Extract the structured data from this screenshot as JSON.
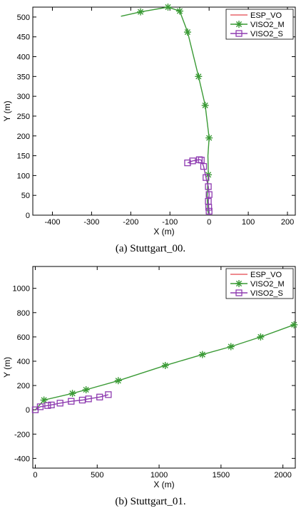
{
  "chart_data": [
    {
      "type": "line",
      "caption": "(a)  Stuttgart_00.",
      "xlabel": "X (m)",
      "ylabel": "Y (m)",
      "xlim": [
        -450,
        220
      ],
      "ylim": [
        0,
        525
      ],
      "xticks": [
        -400,
        -300,
        -200,
        -100,
        0,
        100,
        200
      ],
      "yticks": [
        0,
        50,
        100,
        150,
        200,
        250,
        300,
        350,
        400,
        450,
        500
      ],
      "grid": false,
      "legend": "top-right",
      "series": [
        {
          "name": "ESP_VO",
          "color": "#e8636a",
          "marker": "none",
          "points": []
        },
        {
          "name": "VISO2_M",
          "color": "#3a9a35",
          "marker": "star",
          "points": [
            [
              -225,
              502
            ],
            [
              -175,
              513
            ],
            [
              -105,
              525
            ],
            [
              -75,
              515
            ],
            [
              -55,
              462
            ],
            [
              -27,
              350
            ],
            [
              -10,
              277
            ],
            [
              0,
              195
            ],
            [
              -3,
              150
            ],
            [
              -2,
              102
            ],
            [
              -5,
              50
            ],
            [
              -3,
              10
            ],
            [
              0,
              0
            ]
          ],
          "marker_points": [
            [
              -175,
              513
            ],
            [
              -105,
              525
            ],
            [
              -75,
              515
            ],
            [
              -55,
              462
            ],
            [
              -27,
              350
            ],
            [
              -10,
              277
            ],
            [
              0,
              195
            ],
            [
              -2,
              102
            ]
          ]
        },
        {
          "name": "VISO2_S",
          "color": "#8e3bb0",
          "marker": "square",
          "points": [
            [
              -55,
              132
            ],
            [
              -42,
              137
            ],
            [
              -25,
              140
            ],
            [
              -20,
              139
            ],
            [
              -14,
              123
            ],
            [
              -8,
              95
            ],
            [
              -2,
              72
            ],
            [
              0,
              52
            ],
            [
              -2,
              35
            ],
            [
              -1,
              20
            ],
            [
              0,
              10
            ],
            [
              0,
              0
            ]
          ],
          "marker_points": [
            [
              -55,
              132
            ],
            [
              -42,
              137
            ],
            [
              -25,
              140
            ],
            [
              -20,
              139
            ],
            [
              -14,
              123
            ],
            [
              -8,
              95
            ],
            [
              -2,
              72
            ],
            [
              0,
              52
            ],
            [
              -2,
              35
            ],
            [
              -1,
              20
            ],
            [
              0,
              10
            ]
          ]
        }
      ]
    },
    {
      "type": "line",
      "caption": "(b)  Stuttgart_01.",
      "xlabel": "X (m)",
      "ylabel": "Y (m)",
      "xlim": [
        -20,
        2100
      ],
      "ylim": [
        -480,
        1180
      ],
      "xticks": [
        0,
        500,
        1000,
        1500,
        2000
      ],
      "yticks": [
        -400,
        -200,
        0,
        200,
        400,
        600,
        800,
        1000
      ],
      "grid": false,
      "legend": "top-right",
      "series": [
        {
          "name": "ESP_VO",
          "color": "#e8636a",
          "marker": "none",
          "points": []
        },
        {
          "name": "VISO2_M",
          "color": "#3a9a35",
          "marker": "star",
          "points": [
            [
              0,
              0
            ],
            [
              70,
              80
            ],
            [
              300,
              135
            ],
            [
              410,
              165
            ],
            [
              670,
              240
            ],
            [
              1050,
              365
            ],
            [
              1350,
              455
            ],
            [
              1580,
              520
            ],
            [
              1820,
              600
            ],
            [
              2090,
              700
            ]
          ],
          "marker_points": [
            [
              70,
              80
            ],
            [
              300,
              135
            ],
            [
              410,
              165
            ],
            [
              670,
              240
            ],
            [
              1050,
              365
            ],
            [
              1350,
              455
            ],
            [
              1580,
              520
            ],
            [
              1820,
              600
            ],
            [
              2090,
              700
            ]
          ]
        },
        {
          "name": "VISO2_S",
          "color": "#8e3bb0",
          "marker": "square",
          "points": [
            [
              0,
              0
            ],
            [
              40,
              25
            ],
            [
              100,
              35
            ],
            [
              130,
              40
            ],
            [
              200,
              55
            ],
            [
              290,
              70
            ],
            [
              380,
              80
            ],
            [
              430,
              90
            ],
            [
              520,
              105
            ],
            [
              590,
              125
            ]
          ],
          "marker_points": [
            [
              0,
              0
            ],
            [
              40,
              25
            ],
            [
              100,
              35
            ],
            [
              130,
              40
            ],
            [
              200,
              55
            ],
            [
              290,
              70
            ],
            [
              380,
              80
            ],
            [
              430,
              90
            ],
            [
              520,
              105
            ],
            [
              590,
              125
            ]
          ]
        }
      ]
    }
  ]
}
